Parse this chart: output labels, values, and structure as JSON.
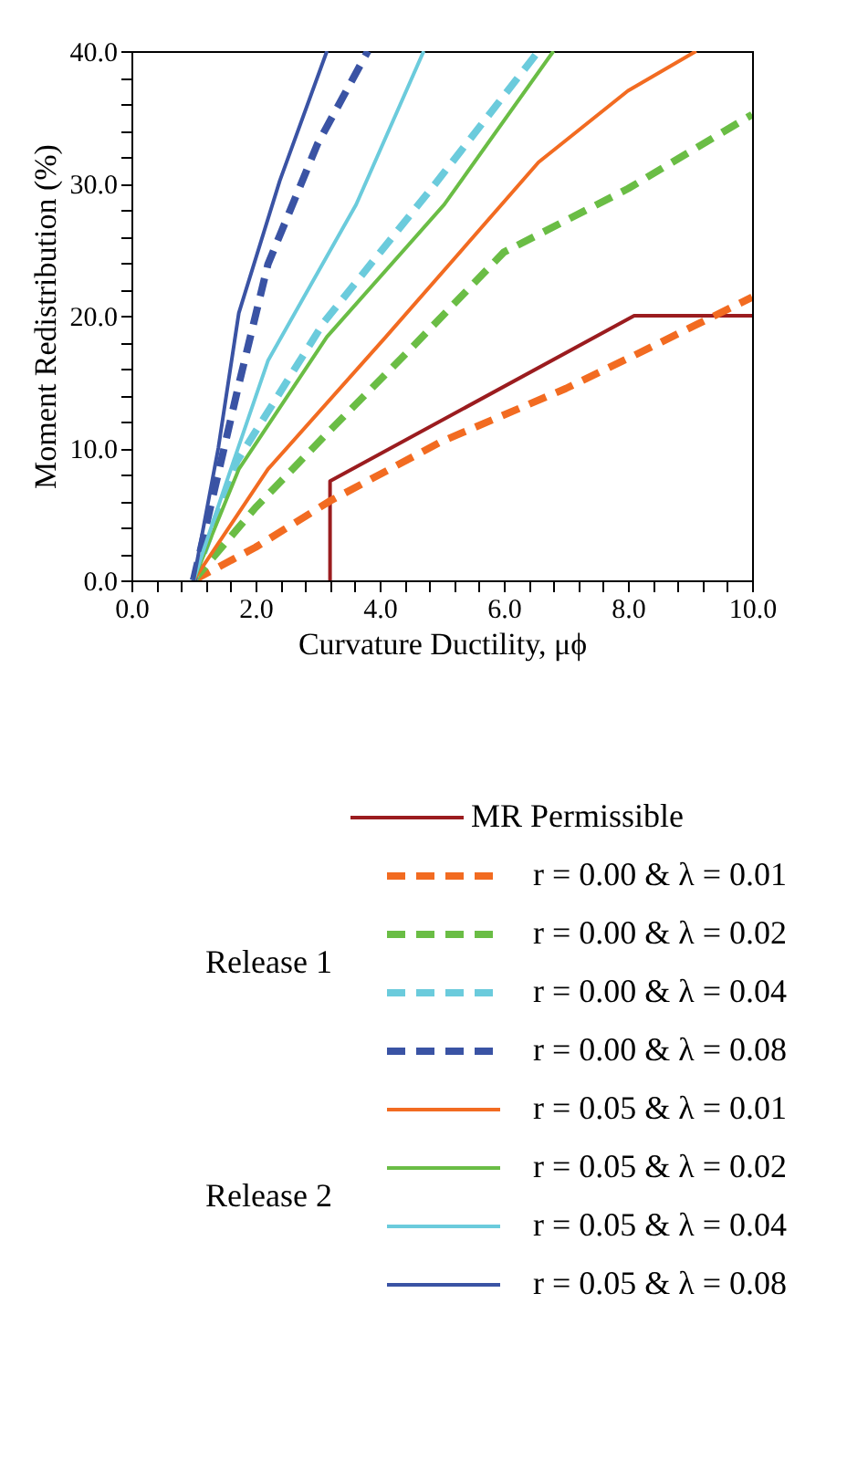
{
  "chart_data": {
    "type": "line",
    "xlabel": "Curvature Ductility, μϕ",
    "ylabel": "Moment Redistribution (%)",
    "xlim": [
      0,
      10
    ],
    "ylim": [
      0,
      40
    ],
    "xticks": [
      {
        "value": 0,
        "label": "0.0"
      },
      {
        "value": 0.4,
        "label": null
      },
      {
        "value": 0.8,
        "label": null
      },
      {
        "value": 1.2,
        "label": null
      },
      {
        "value": 1.6,
        "label": null
      },
      {
        "value": 2,
        "label": "2.0"
      },
      {
        "value": 2.4,
        "label": null
      },
      {
        "value": 2.8,
        "label": null
      },
      {
        "value": 3.2,
        "label": null
      },
      {
        "value": 3.6,
        "label": null
      },
      {
        "value": 4,
        "label": "4.0"
      },
      {
        "value": 4.4,
        "label": null
      },
      {
        "value": 4.8,
        "label": null
      },
      {
        "value": 5.2,
        "label": null
      },
      {
        "value": 5.6,
        "label": null
      },
      {
        "value": 6,
        "label": "6.0"
      },
      {
        "value": 6.4,
        "label": null
      },
      {
        "value": 6.8,
        "label": null
      },
      {
        "value": 7.2,
        "label": null
      },
      {
        "value": 7.6,
        "label": null
      },
      {
        "value": 8,
        "label": "8.0"
      },
      {
        "value": 8.4,
        "label": null
      },
      {
        "value": 8.8,
        "label": null
      },
      {
        "value": 9.2,
        "label": null
      },
      {
        "value": 9.6,
        "label": null
      },
      {
        "value": 10,
        "label": "10.0"
      }
    ],
    "yticks": [
      {
        "value": 0,
        "label": "0.0"
      },
      {
        "value": 2,
        "label": null
      },
      {
        "value": 4,
        "label": null
      },
      {
        "value": 6,
        "label": null
      },
      {
        "value": 8,
        "label": null
      },
      {
        "value": 10,
        "label": "10.0"
      },
      {
        "value": 12,
        "label": null
      },
      {
        "value": 14,
        "label": null
      },
      {
        "value": 16,
        "label": null
      },
      {
        "value": 18,
        "label": null
      },
      {
        "value": 20,
        "label": "20.0"
      },
      {
        "value": 22,
        "label": null
      },
      {
        "value": 24,
        "label": null
      },
      {
        "value": 26,
        "label": null
      },
      {
        "value": 28,
        "label": null
      },
      {
        "value": 30,
        "label": "30.0"
      },
      {
        "value": 32,
        "label": null
      },
      {
        "value": 34,
        "label": null
      },
      {
        "value": 36,
        "label": null
      },
      {
        "value": 38,
        "label": null
      },
      {
        "value": 40,
        "label": "40.0"
      }
    ],
    "grid": false,
    "legend": "bottom",
    "marker": "none",
    "annotations": [
      "Release 1",
      "Release 2"
    ],
    "series": [
      {
        "name": "MR Permissible",
        "color": "#9b1c1f",
        "line_style": "solid",
        "x": [
          3.2,
          3.2,
          8.1,
          10
        ],
        "values": [
          0,
          7.5,
          20,
          20
        ]
      },
      {
        "name": "r = 0.00 & λ = 0.01",
        "color": "#f26b21",
        "line_style": "dashed",
        "x": [
          1,
          2,
          3.2,
          5,
          7,
          8.1,
          10
        ],
        "values": [
          0,
          2.5,
          6,
          10.5,
          14.5,
          17,
          21.4
        ]
      },
      {
        "name": "r = 0.00 & λ = 0.02",
        "color": "#6abd45",
        "line_style": "dashed",
        "x": [
          1,
          2,
          3.15,
          4.5,
          6,
          8,
          10
        ],
        "values": [
          0,
          5.5,
          11.1,
          17.5,
          24.8,
          29.6,
          35.2
        ]
      },
      {
        "name": "r = 0.00 & λ = 0.04",
        "color": "#6bcbdc",
        "line_style": "dashed",
        "x": [
          1,
          1.7,
          3.1,
          4.9,
          6.56
        ],
        "values": [
          0,
          9,
          19.5,
          30,
          40
        ]
      },
      {
        "name": "r = 0.00 & λ = 0.08",
        "color": "#3a53a4",
        "line_style": "dashed",
        "x": [
          1,
          1.73,
          2.2,
          3,
          3.81
        ],
        "values": [
          0,
          14.8,
          23.9,
          33,
          40
        ]
      },
      {
        "name": "r = 0.05 & λ = 0.01",
        "color": "#f26b21",
        "line_style": "solid",
        "x": [
          1,
          2.2,
          4.1,
          6.56,
          8,
          9.1
        ],
        "values": [
          0,
          8.4,
          18.4,
          31.6,
          37,
          40
        ]
      },
      {
        "name": "r = 0.05 & λ = 0.02",
        "color": "#6abd45",
        "line_style": "solid",
        "x": [
          1,
          1.73,
          3.15,
          5.04,
          6.8
        ],
        "values": [
          0,
          8.4,
          18.4,
          28.4,
          40
        ]
      },
      {
        "name": "r = 0.05 & λ = 0.04",
        "color": "#6bcbdc",
        "line_style": "solid",
        "x": [
          1,
          1.5,
          2.2,
          3.62,
          4.71
        ],
        "values": [
          0,
          7,
          16.6,
          28.4,
          40
        ]
      },
      {
        "name": "r = 0.05 & λ = 0.08",
        "color": "#3a53a4",
        "line_style": "solid",
        "x": [
          1,
          1.4,
          1.73,
          2.39,
          3.15
        ],
        "values": [
          0,
          10,
          20.2,
          30.2,
          40
        ]
      }
    ]
  }
}
